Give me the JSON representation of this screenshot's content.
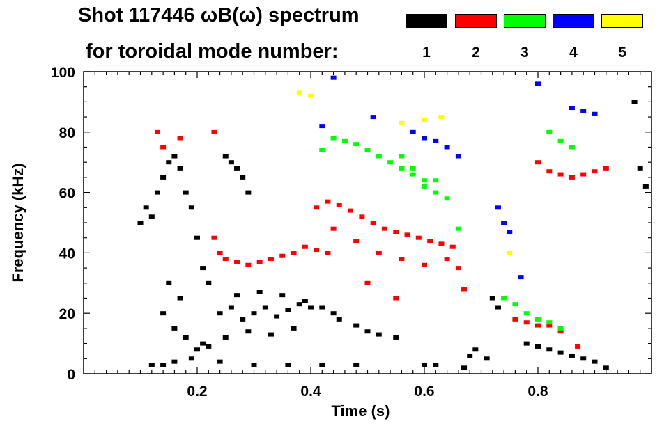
{
  "title_line1": "Shot 117446 ωB(ω) spectrum",
  "title_line2": "for toroidal mode number:",
  "chart_data": {
    "type": "scatter",
    "xlabel": "Time (s)",
    "ylabel": "Frequency (kHz)",
    "xlim": [
      0.0,
      1.0
    ],
    "ylim": [
      0,
      100
    ],
    "xticks": [
      0.2,
      0.4,
      0.6,
      0.8
    ],
    "xtick_labels": [
      "0.2",
      "0.4",
      "0.6",
      "0.8"
    ],
    "yticks": [
      0,
      20,
      40,
      60,
      80,
      100
    ],
    "ytick_labels": [
      "0",
      "20",
      "40",
      "60",
      "80",
      "100"
    ],
    "legend_placement": "top-right",
    "series": [
      {
        "name": "1",
        "color": "#000000",
        "points": [
          [
            0.1,
            50
          ],
          [
            0.11,
            55
          ],
          [
            0.12,
            52
          ],
          [
            0.13,
            60
          ],
          [
            0.14,
            65
          ],
          [
            0.15,
            70
          ],
          [
            0.16,
            72
          ],
          [
            0.17,
            68
          ],
          [
            0.18,
            60
          ],
          [
            0.19,
            55
          ],
          [
            0.2,
            45
          ],
          [
            0.21,
            35
          ],
          [
            0.22,
            30
          ],
          [
            0.14,
            20
          ],
          [
            0.15,
            30
          ],
          [
            0.16,
            15
          ],
          [
            0.17,
            25
          ],
          [
            0.18,
            12
          ],
          [
            0.19,
            5
          ],
          [
            0.2,
            8
          ],
          [
            0.21,
            10
          ],
          [
            0.22,
            9
          ],
          [
            0.25,
            72
          ],
          [
            0.26,
            70
          ],
          [
            0.27,
            68
          ],
          [
            0.28,
            65
          ],
          [
            0.29,
            60
          ],
          [
            0.24,
            20
          ],
          [
            0.26,
            22
          ],
          [
            0.28,
            18
          ],
          [
            0.3,
            20
          ],
          [
            0.32,
            22
          ],
          [
            0.34,
            19
          ],
          [
            0.36,
            21
          ],
          [
            0.38,
            23
          ],
          [
            0.4,
            22
          ],
          [
            0.42,
            22
          ],
          [
            0.44,
            20
          ],
          [
            0.25,
            12
          ],
          [
            0.27,
            26
          ],
          [
            0.29,
            14
          ],
          [
            0.31,
            27
          ],
          [
            0.33,
            13
          ],
          [
            0.35,
            26
          ],
          [
            0.37,
            15
          ],
          [
            0.39,
            24
          ],
          [
            0.45,
            18
          ],
          [
            0.48,
            16
          ],
          [
            0.5,
            14
          ],
          [
            0.52,
            13
          ],
          [
            0.55,
            12
          ],
          [
            0.12,
            3
          ],
          [
            0.14,
            3
          ],
          [
            0.16,
            4
          ],
          [
            0.24,
            4
          ],
          [
            0.3,
            3
          ],
          [
            0.36,
            3
          ],
          [
            0.42,
            3
          ],
          [
            0.48,
            3
          ],
          [
            0.6,
            3
          ],
          [
            0.62,
            3
          ],
          [
            0.67,
            2
          ],
          [
            0.68,
            6
          ],
          [
            0.69,
            8
          ],
          [
            0.71,
            5
          ],
          [
            0.72,
            25
          ],
          [
            0.73,
            22
          ],
          [
            0.78,
            10
          ],
          [
            0.8,
            9
          ],
          [
            0.82,
            8
          ],
          [
            0.84,
            7
          ],
          [
            0.86,
            6
          ],
          [
            0.88,
            5
          ],
          [
            0.9,
            4
          ],
          [
            0.92,
            2
          ],
          [
            0.97,
            90
          ],
          [
            0.98,
            68
          ],
          [
            0.99,
            62
          ]
        ]
      },
      {
        "name": "2",
        "color": "#ff0000",
        "points": [
          [
            0.13,
            80
          ],
          [
            0.14,
            75
          ],
          [
            0.17,
            78
          ],
          [
            0.23,
            80
          ],
          [
            0.23,
            45
          ],
          [
            0.24,
            40
          ],
          [
            0.25,
            38
          ],
          [
            0.27,
            37
          ],
          [
            0.29,
            36
          ],
          [
            0.31,
            37
          ],
          [
            0.33,
            38
          ],
          [
            0.35,
            39
          ],
          [
            0.37,
            40
          ],
          [
            0.39,
            42
          ],
          [
            0.41,
            41
          ],
          [
            0.43,
            40
          ],
          [
            0.41,
            55
          ],
          [
            0.43,
            57
          ],
          [
            0.45,
            56
          ],
          [
            0.47,
            54
          ],
          [
            0.49,
            52
          ],
          [
            0.51,
            50
          ],
          [
            0.53,
            48
          ],
          [
            0.55,
            47
          ],
          [
            0.57,
            46
          ],
          [
            0.59,
            45
          ],
          [
            0.61,
            44
          ],
          [
            0.63,
            43
          ],
          [
            0.65,
            42
          ],
          [
            0.44,
            48
          ],
          [
            0.48,
            44
          ],
          [
            0.52,
            40
          ],
          [
            0.56,
            38
          ],
          [
            0.6,
            36
          ],
          [
            0.64,
            38
          ],
          [
            0.5,
            30
          ],
          [
            0.55,
            25
          ],
          [
            0.66,
            35
          ],
          [
            0.67,
            28
          ],
          [
            0.76,
            18
          ],
          [
            0.78,
            17
          ],
          [
            0.8,
            16
          ],
          [
            0.82,
            16
          ],
          [
            0.84,
            14
          ],
          [
            0.87,
            9
          ],
          [
            0.8,
            70
          ],
          [
            0.82,
            67
          ],
          [
            0.84,
            66
          ],
          [
            0.86,
            65
          ],
          [
            0.88,
            66
          ],
          [
            0.9,
            67
          ],
          [
            0.92,
            68
          ]
        ]
      },
      {
        "name": "3",
        "color": "#00ff00",
        "points": [
          [
            0.42,
            74
          ],
          [
            0.44,
            78
          ],
          [
            0.46,
            77
          ],
          [
            0.48,
            76
          ],
          [
            0.5,
            74
          ],
          [
            0.52,
            72
          ],
          [
            0.54,
            70
          ],
          [
            0.56,
            68
          ],
          [
            0.58,
            66
          ],
          [
            0.6,
            64
          ],
          [
            0.62,
            60
          ],
          [
            0.64,
            58
          ],
          [
            0.66,
            48
          ],
          [
            0.56,
            72
          ],
          [
            0.58,
            68
          ],
          [
            0.6,
            62
          ],
          [
            0.62,
            64
          ],
          [
            0.74,
            25
          ],
          [
            0.76,
            23
          ],
          [
            0.78,
            20
          ],
          [
            0.8,
            18
          ],
          [
            0.82,
            17
          ],
          [
            0.84,
            15
          ],
          [
            0.82,
            80
          ],
          [
            0.84,
            77
          ],
          [
            0.86,
            75
          ]
        ]
      },
      {
        "name": "4",
        "color": "#0000ff",
        "points": [
          [
            0.42,
            82
          ],
          [
            0.44,
            98
          ],
          [
            0.51,
            85
          ],
          [
            0.58,
            80
          ],
          [
            0.6,
            78
          ],
          [
            0.62,
            77
          ],
          [
            0.64,
            75
          ],
          [
            0.66,
            72
          ],
          [
            0.73,
            55
          ],
          [
            0.74,
            50
          ],
          [
            0.75,
            47
          ],
          [
            0.77,
            32
          ],
          [
            0.8,
            96
          ],
          [
            0.86,
            88
          ],
          [
            0.88,
            87
          ],
          [
            0.9,
            86
          ]
        ]
      },
      {
        "name": "5",
        "color": "#ffff00",
        "points": [
          [
            0.38,
            93
          ],
          [
            0.4,
            92
          ],
          [
            0.56,
            83
          ],
          [
            0.6,
            84
          ],
          [
            0.63,
            85
          ],
          [
            0.75,
            40
          ]
        ]
      }
    ]
  }
}
